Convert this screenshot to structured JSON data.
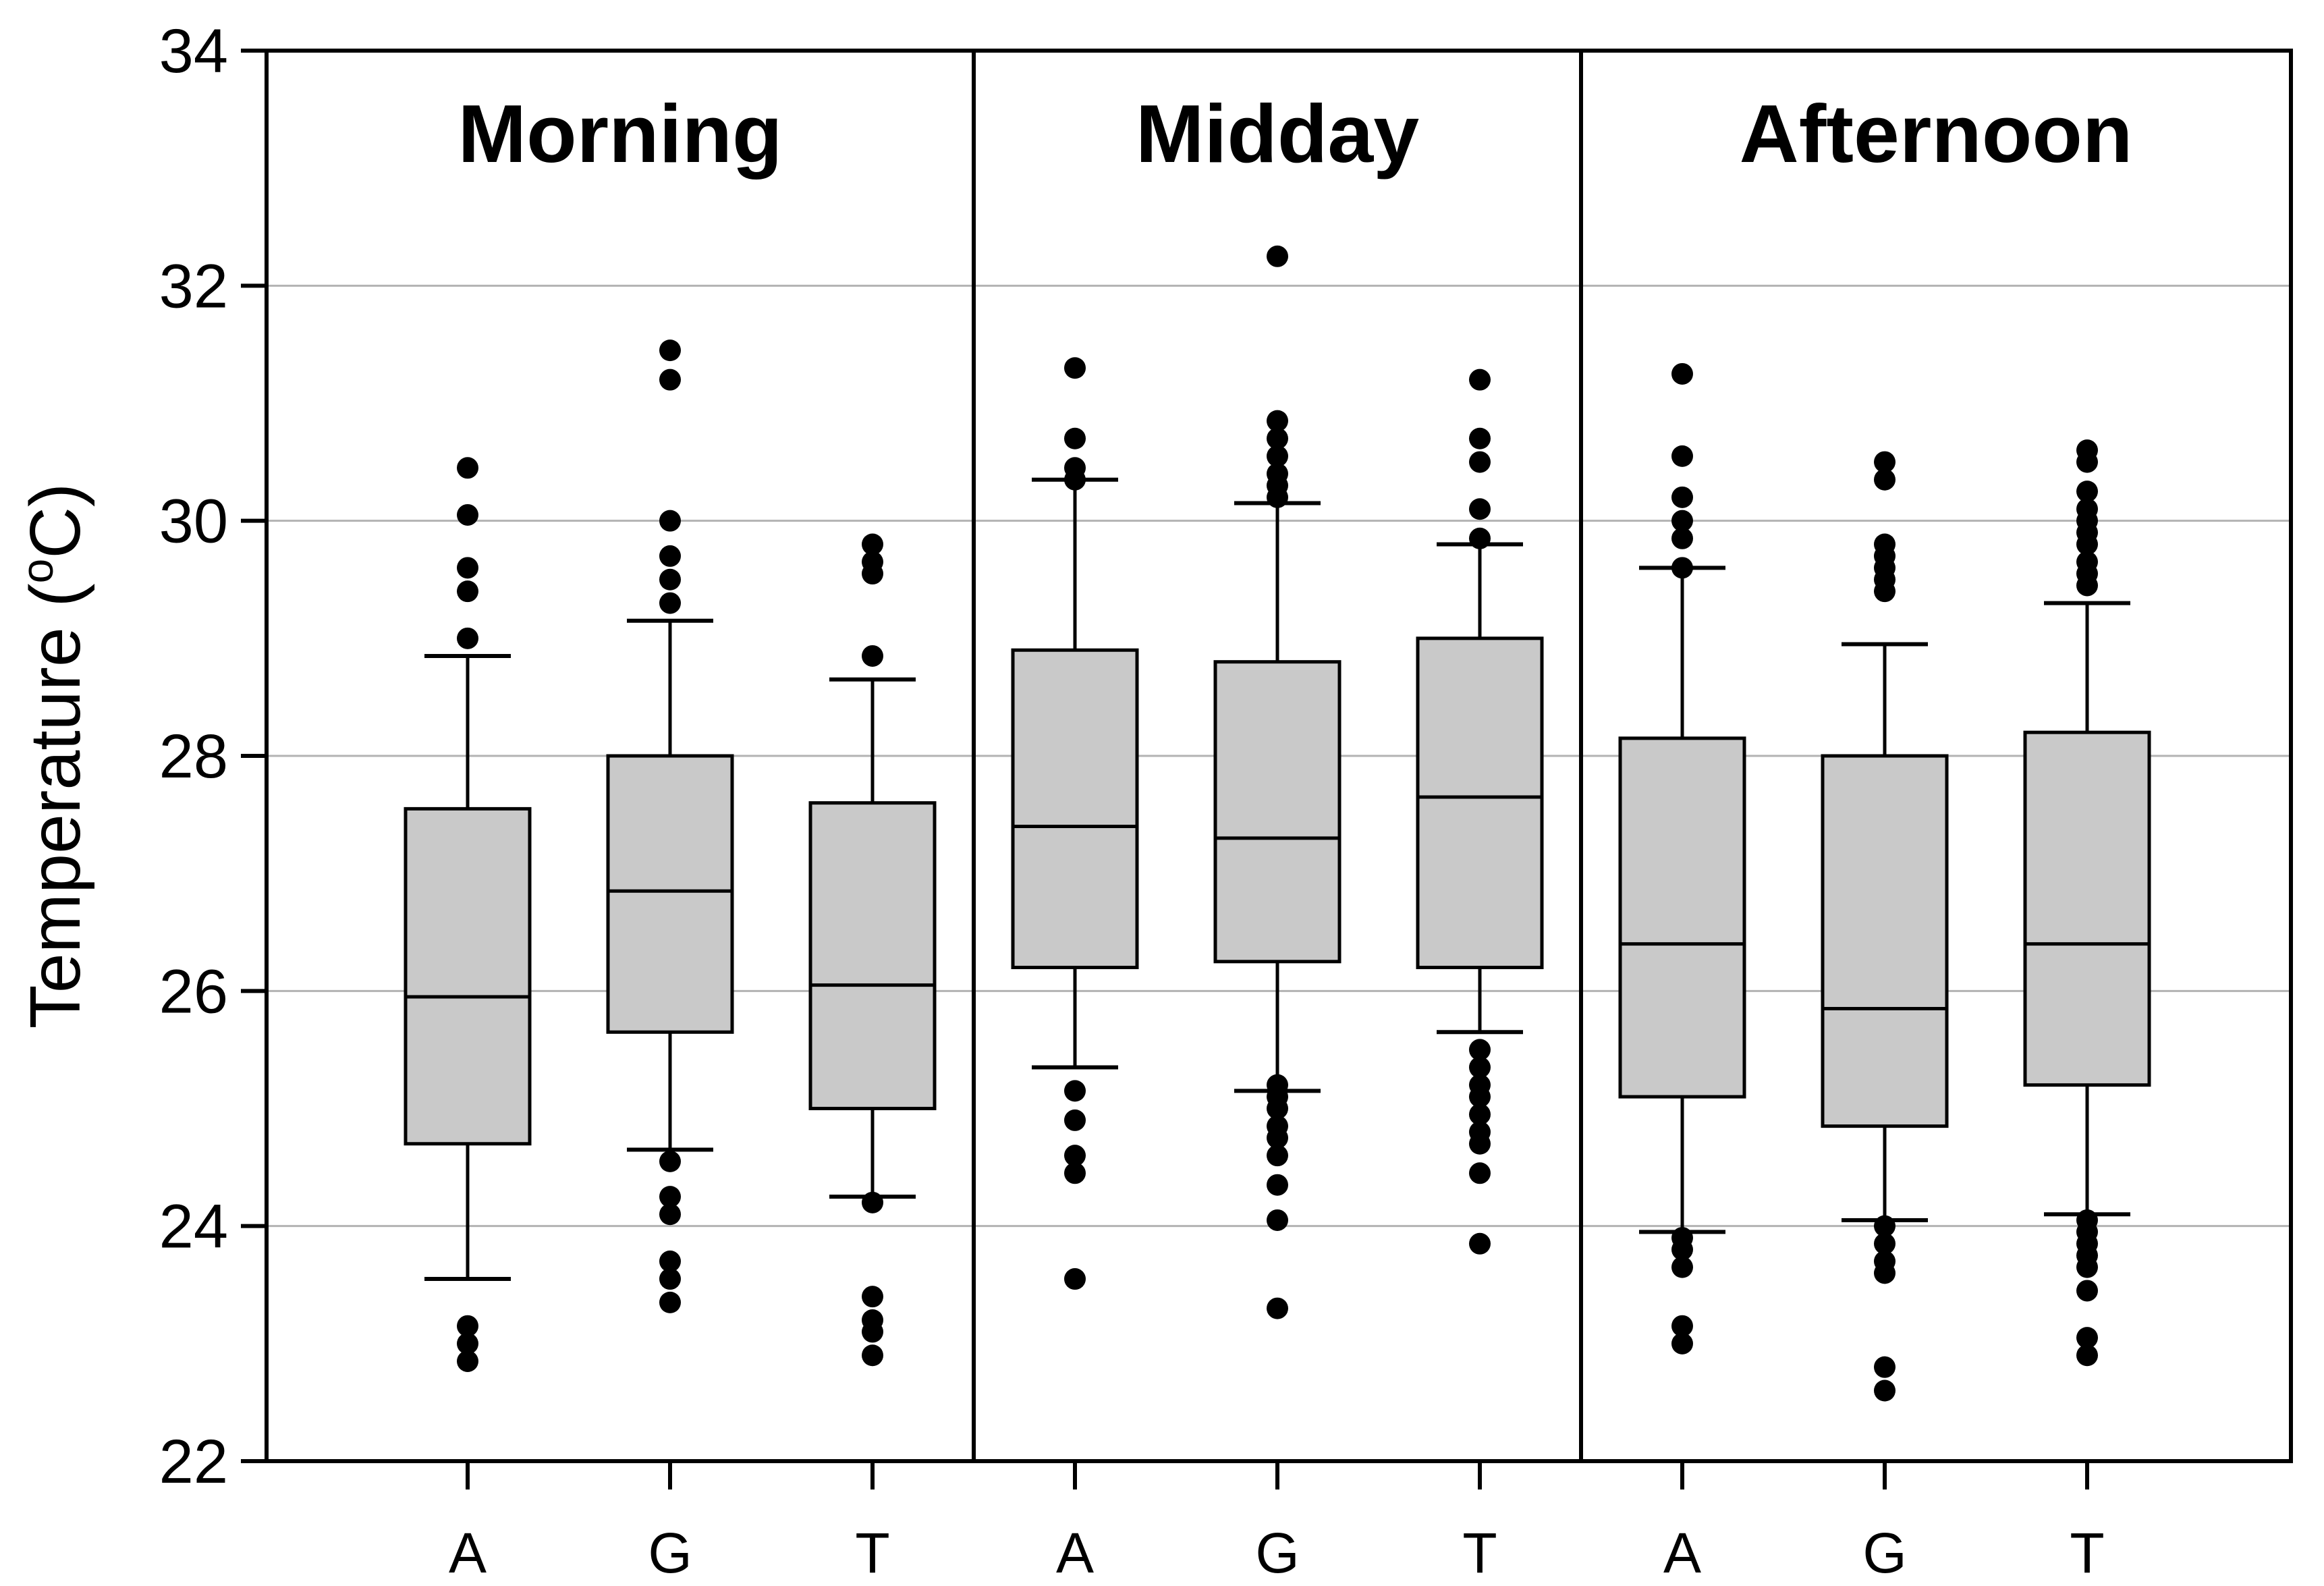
{
  "figure": {
    "background": "#ffffff"
  },
  "chart_data": {
    "type": "boxplot",
    "title": "",
    "ylabel": "Temperature (°C)",
    "ylabel_parts": {
      "prefix": "Temperature (",
      "sup": "o",
      "suffix": "C)"
    },
    "ylim": [
      22,
      34
    ],
    "yticks": [
      22,
      24,
      26,
      28,
      30,
      32,
      34
    ],
    "gridlines": [
      24,
      26,
      28,
      30,
      32
    ],
    "grid_on": true,
    "legend": "none",
    "style": {
      "box_fill": "#c9c9c9",
      "line_color": "#000000",
      "grid_color": "#b3b3b3",
      "dot_color": "#000000",
      "plot_background": "#ffffff"
    },
    "panels": [
      {
        "label": "Morning",
        "groups": [
          {
            "category": "A",
            "whisker_low": 23.55,
            "q1": 24.7,
            "median": 25.95,
            "q3": 27.55,
            "whisker_high": 28.85,
            "outliers_high": [
              30.45,
              30.05,
              29.6,
              29.4,
              29.0
            ],
            "outliers_low": [
              23.15,
              23.0,
              22.85
            ]
          },
          {
            "category": "G",
            "whisker_low": 24.65,
            "q1": 25.65,
            "median": 26.85,
            "q3": 28.0,
            "whisker_high": 29.15,
            "outliers_high": [
              31.45,
              31.2,
              30.0,
              29.7,
              29.5,
              29.3
            ],
            "outliers_low": [
              24.55,
              24.25,
              24.1,
              23.7,
              23.55,
              23.35
            ]
          },
          {
            "category": "T",
            "whisker_low": 24.25,
            "q1": 25.0,
            "median": 26.05,
            "q3": 27.6,
            "whisker_high": 28.65,
            "outliers_high": [
              29.8,
              29.65,
              29.55,
              28.85
            ],
            "outliers_low": [
              24.2,
              23.4,
              23.2,
              23.1,
              22.9
            ]
          }
        ]
      },
      {
        "label": "Midday",
        "groups": [
          {
            "category": "A",
            "whisker_low": 25.35,
            "q1": 26.2,
            "median": 27.4,
            "q3": 28.9,
            "whisker_high": 30.35,
            "outliers_high": [
              31.3,
              30.7,
              30.45,
              30.35
            ],
            "outliers_low": [
              25.15,
              24.9,
              24.6,
              24.45,
              23.55
            ]
          },
          {
            "category": "G",
            "whisker_low": 25.15,
            "q1": 26.25,
            "median": 27.3,
            "q3": 28.8,
            "whisker_high": 30.15,
            "outliers_high": [
              32.25,
              30.85,
              30.7,
              30.55,
              30.4,
              30.3,
              30.2
            ],
            "outliers_low": [
              25.2,
              25.1,
              25.0,
              24.85,
              24.75,
              24.6,
              24.35,
              24.05,
              23.3
            ]
          },
          {
            "category": "T",
            "whisker_low": 25.65,
            "q1": 26.2,
            "median": 27.65,
            "q3": 29.0,
            "whisker_high": 29.8,
            "outliers_high": [
              31.2,
              30.7,
              30.5,
              30.1,
              29.85
            ],
            "outliers_low": [
              25.5,
              25.35,
              25.2,
              25.1,
              24.95,
              24.8,
              24.7,
              24.45,
              23.85
            ]
          }
        ]
      },
      {
        "label": "Afternoon",
        "groups": [
          {
            "category": "A",
            "whisker_low": 23.95,
            "q1": 25.1,
            "median": 26.4,
            "q3": 28.15,
            "whisker_high": 29.6,
            "outliers_high": [
              31.25,
              30.55,
              30.2,
              30.0,
              29.85,
              29.6
            ],
            "outliers_low": [
              23.9,
              23.8,
              23.65,
              23.15,
              23.0
            ]
          },
          {
            "category": "G",
            "whisker_low": 24.05,
            "q1": 24.85,
            "median": 25.85,
            "q3": 28.0,
            "whisker_high": 28.95,
            "outliers_high": [
              30.5,
              30.35,
              29.8,
              29.7,
              29.6,
              29.5,
              29.4
            ],
            "outliers_low": [
              24.0,
              23.85,
              23.7,
              23.6,
              22.8,
              22.6
            ]
          },
          {
            "category": "T",
            "whisker_low": 24.1,
            "q1": 25.2,
            "median": 26.4,
            "q3": 28.2,
            "whisker_high": 29.3,
            "outliers_high": [
              30.6,
              30.5,
              30.25,
              30.1,
              30.0,
              29.9,
              29.8,
              29.65,
              29.55,
              29.45
            ],
            "outliers_low": [
              24.05,
              23.95,
              23.85,
              23.75,
              23.65,
              23.45,
              23.05,
              22.9
            ]
          }
        ]
      }
    ]
  }
}
